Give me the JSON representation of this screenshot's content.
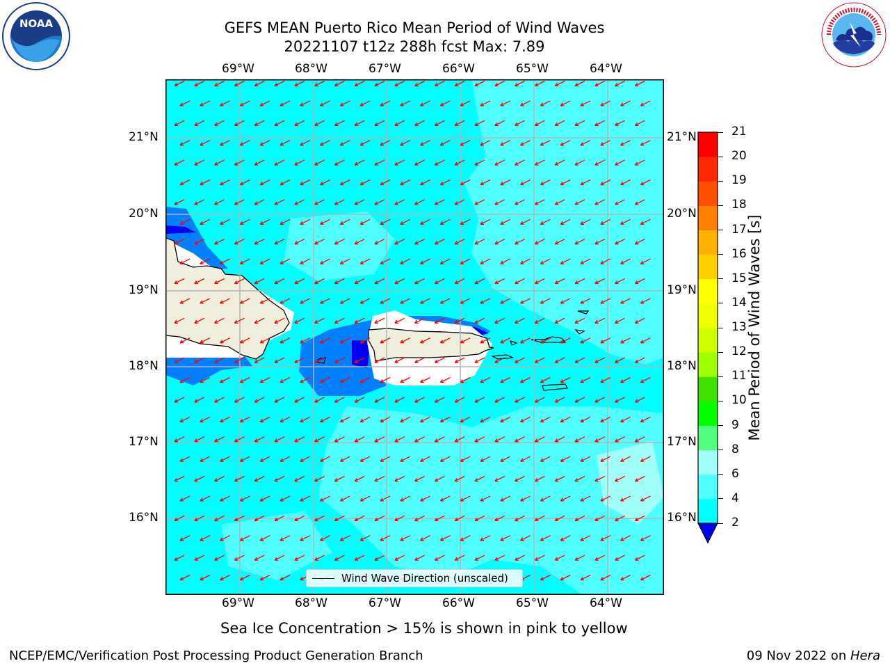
{
  "title": {
    "line1": "GEFS MEAN Puerto Rico Mean Period of Wind Waves",
    "line2": "20221107 t12z 288h fcst   Max: 7.89"
  },
  "map": {
    "lon_labels": [
      "69°W",
      "68°W",
      "67°W",
      "66°W",
      "65°W",
      "64°W"
    ],
    "lat_labels": [
      "21°N",
      "20°N",
      "19°N",
      "18°N",
      "17°N",
      "16°N"
    ],
    "legend_label": "Wind Wave Direction (unscaled)",
    "wind_wave_direction": "toward southwest",
    "colors": {
      "ocean_4_6": "#00ffff",
      "ocean_6_8": "#50ffff",
      "ocean_8_9": "#a0fff8",
      "shallow_2_4": "#0080ff",
      "deep_below_2": "#0000f0",
      "land": "#f0eedc",
      "arrow": "#ff0000"
    }
  },
  "colorbar": {
    "label": "Mean Period of Wind Waves [s]",
    "ticks": [
      "2",
      "4",
      "6",
      "8",
      "9",
      "10",
      "11",
      "12",
      "13",
      "14",
      "15",
      "16",
      "17",
      "18",
      "19",
      "20",
      "21"
    ],
    "colors": [
      "#0080ff",
      "#00ffff",
      "#50ffff",
      "#a0fff8",
      "#50ff80",
      "#00ff00",
      "#40e000",
      "#a0ff00",
      "#d0ff00",
      "#f0ff00",
      "#ffff00",
      "#ffd000",
      "#ffb000",
      "#ff8000",
      "#ff5000",
      "#ff2800",
      "#ff0000"
    ],
    "under_color": "#0000f0"
  },
  "caption": "Sea Ice Concentration > 15% is shown in pink to yellow",
  "footer": {
    "left": "NCEP/EMC/Verification Post Processing Product Generation Branch",
    "date": "09 Nov 2022 on ",
    "machine": "Hera"
  },
  "logos": {
    "noaa": "NOAA",
    "nws_ring": "NATIONAL WEATHER SERVICE"
  }
}
